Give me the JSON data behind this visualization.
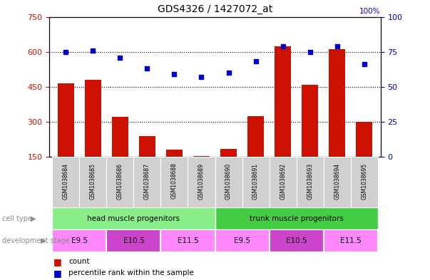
{
  "title": "GDS4326 / 1427072_at",
  "samples": [
    "GSM1038684",
    "GSM1038685",
    "GSM1038686",
    "GSM1038687",
    "GSM1038688",
    "GSM1038689",
    "GSM1038690",
    "GSM1038691",
    "GSM1038692",
    "GSM1038693",
    "GSM1038694",
    "GSM1038695"
  ],
  "counts": [
    465,
    480,
    320,
    240,
    180,
    152,
    185,
    325,
    625,
    460,
    610,
    300
  ],
  "percentiles": [
    75,
    76,
    71,
    63,
    59,
    57,
    60,
    68,
    79,
    75,
    79,
    66
  ],
  "ylim_left": [
    150,
    750
  ],
  "ylim_right": [
    0,
    100
  ],
  "yticks_left": [
    150,
    300,
    450,
    600,
    750
  ],
  "yticks_right": [
    0,
    25,
    50,
    75,
    100
  ],
  "bar_color": "#cc1100",
  "dot_color": "#0000cc",
  "grid_color": "#000000",
  "cell_type_groups": [
    {
      "label": "head muscle progenitors",
      "start": 0,
      "end": 5,
      "color": "#88ee88"
    },
    {
      "label": "trunk muscle progenitors",
      "start": 6,
      "end": 11,
      "color": "#44cc44"
    }
  ],
  "dev_stages": [
    {
      "label": "E9.5",
      "start": 0,
      "end": 1,
      "color": "#ff88ff"
    },
    {
      "label": "E10.5",
      "start": 2,
      "end": 3,
      "color": "#cc44cc"
    },
    {
      "label": "E11.5",
      "start": 4,
      "end": 5,
      "color": "#ff88ff"
    },
    {
      "label": "E9.5",
      "start": 6,
      "end": 7,
      "color": "#ff88ff"
    },
    {
      "label": "E10.5",
      "start": 8,
      "end": 9,
      "color": "#cc44cc"
    },
    {
      "label": "E11.5",
      "start": 10,
      "end": 11,
      "color": "#ff88ff"
    }
  ],
  "legend_count_color": "#cc1100",
  "legend_dot_color": "#0000cc",
  "label_color_left": "#cc1100",
  "label_color_right": "#0000cc",
  "background_color": "#ffffff",
  "sample_box_color": "#d0d0d0",
  "cell_type_label_color": "#888888",
  "dev_stage_label_color": "#888888"
}
